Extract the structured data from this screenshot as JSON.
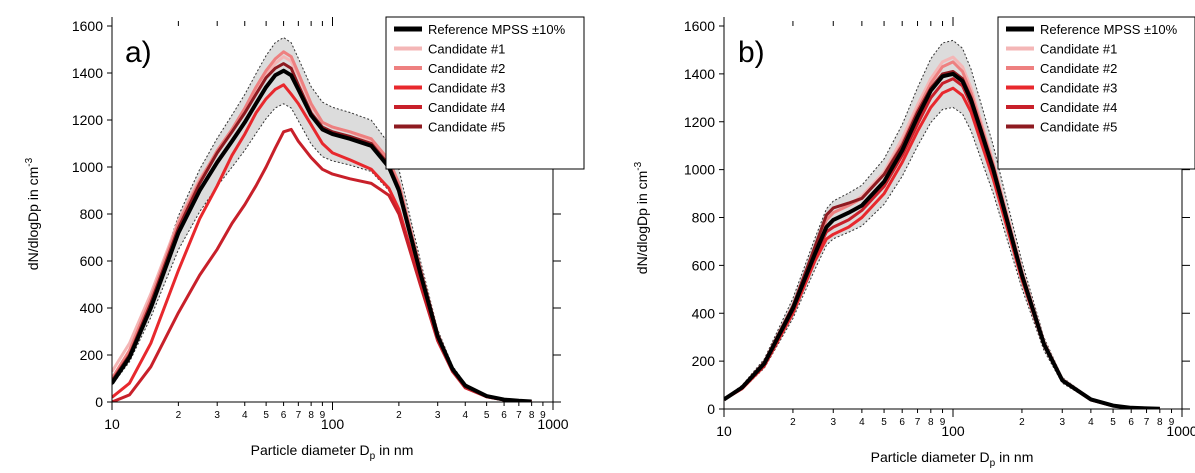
{
  "chart_data": [
    {
      "type": "line",
      "panel_label": "a)",
      "xlabel_main": "Particle diameter D",
      "xlabel_sub": "p",
      "xlabel_tail": " in nm",
      "ylabel_main": "dN/dlogDp in cm",
      "ylabel_sup": "-3",
      "x_scale": "log",
      "xlim": [
        10,
        1000
      ],
      "ylim": [
        0,
        1600
      ],
      "y_ticks": [
        0,
        200,
        400,
        600,
        800,
        1000,
        1200,
        1400,
        1600
      ],
      "x_major_ticks": [
        10,
        100,
        1000
      ],
      "x_major_labels": [
        "10",
        "100",
        "1000"
      ],
      "x_minor_ticks": [
        20,
        30,
        40,
        50,
        60,
        70,
        80,
        90,
        200,
        300,
        400,
        500,
        600,
        700,
        800,
        900
      ],
      "x_minor_labels": [
        "2",
        "3",
        "4",
        "5",
        "6",
        "7",
        "8",
        "9",
        "2",
        "3",
        "4",
        "5",
        "6",
        "7",
        "8",
        "9"
      ],
      "legend_position": "top-right",
      "band_label": "±10%",
      "x": [
        10,
        12,
        15,
        20,
        25,
        30,
        35,
        40,
        45,
        50,
        55,
        60,
        65,
        70,
        80,
        90,
        100,
        120,
        150,
        180,
        200,
        250,
        300,
        350,
        400,
        500,
        600,
        700,
        800
      ],
      "series": [
        {
          "name": "Reference MPSS ±10%",
          "color": "#000000",
          "width": 4,
          "values": [
            80,
            190,
            400,
            720,
            900,
            1020,
            1110,
            1190,
            1270,
            1340,
            1390,
            1410,
            1390,
            1330,
            1220,
            1160,
            1140,
            1120,
            1090,
            1000,
            900,
            550,
            280,
            140,
            70,
            25,
            10,
            5,
            2
          ]
        },
        {
          "name": "Candidate #1",
          "color": "#f4b6b6",
          "width": 3,
          "values": [
            130,
            250,
            460,
            770,
            950,
            1060,
            1150,
            1240,
            1320,
            1390,
            1440,
            1470,
            1450,
            1390,
            1260,
            1190,
            1170,
            1150,
            1110,
            1020,
            920,
            560,
            290,
            140,
            70,
            25,
            10,
            5,
            2
          ]
        },
        {
          "name": "Candidate #2",
          "color": "#ee8080",
          "width": 3,
          "values": [
            100,
            220,
            440,
            760,
            940,
            1070,
            1160,
            1250,
            1340,
            1410,
            1460,
            1490,
            1470,
            1400,
            1270,
            1190,
            1170,
            1150,
            1120,
            1030,
            930,
            570,
            290,
            140,
            70,
            25,
            10,
            5,
            2
          ]
        },
        {
          "name": "Candidate #3",
          "color": "#e8282d",
          "width": 3,
          "values": [
            20,
            80,
            250,
            560,
            780,
            920,
            1050,
            1140,
            1230,
            1290,
            1330,
            1350,
            1310,
            1270,
            1180,
            1100,
            1060,
            1030,
            990,
            910,
            820,
            510,
            270,
            130,
            65,
            22,
            9,
            4,
            2
          ]
        },
        {
          "name": "Candidate #4",
          "color": "#c8202a",
          "width": 3,
          "values": [
            0,
            30,
            150,
            380,
            540,
            650,
            760,
            840,
            920,
            1000,
            1080,
            1150,
            1160,
            1110,
            1040,
            990,
            970,
            950,
            930,
            880,
            800,
            500,
            260,
            130,
            60,
            22,
            9,
            4,
            2
          ]
        },
        {
          "name": "Candidate #5",
          "color": "#8e1a20",
          "width": 3,
          "values": [
            90,
            200,
            420,
            740,
            930,
            1060,
            1150,
            1230,
            1310,
            1380,
            1420,
            1440,
            1420,
            1350,
            1230,
            1170,
            1150,
            1130,
            1100,
            1010,
            910,
            560,
            285,
            140,
            70,
            25,
            10,
            5,
            2
          ]
        }
      ]
    },
    {
      "type": "line",
      "panel_label": "b)",
      "xlabel_main": "Particle diameter D",
      "xlabel_sub": "p",
      "xlabel_tail": " in nm",
      "ylabel_main": "dN/dlogDp in cm",
      "ylabel_sup": "-3",
      "x_scale": "log",
      "xlim": [
        10,
        1000
      ],
      "ylim": [
        0,
        1600
      ],
      "y_ticks": [
        0,
        200,
        400,
        600,
        800,
        1000,
        1200,
        1400,
        1600
      ],
      "x_major_ticks": [
        10,
        100,
        1000
      ],
      "x_major_labels": [
        "10",
        "100",
        "1000"
      ],
      "x_minor_ticks": [
        20,
        30,
        40,
        50,
        60,
        70,
        80,
        90,
        200,
        300,
        400,
        500,
        600,
        700,
        800,
        900
      ],
      "x_minor_labels": [
        "2",
        "3",
        "4",
        "5",
        "6",
        "7",
        "8",
        "9",
        "2",
        "3",
        "4",
        "5",
        "6",
        "7",
        "8",
        "9"
      ],
      "legend_position": "top-right",
      "band_label": "±10%",
      "x": [
        10,
        12,
        15,
        20,
        25,
        28,
        30,
        35,
        40,
        50,
        60,
        70,
        80,
        90,
        100,
        110,
        120,
        150,
        200,
        250,
        300,
        400,
        500,
        600,
        800
      ],
      "series": [
        {
          "name": "Reference MPSS ±10%",
          "color": "#000000",
          "width": 4,
          "values": [
            40,
            90,
            190,
            420,
            650,
            760,
            790,
            820,
            850,
            950,
            1080,
            1220,
            1330,
            1390,
            1400,
            1370,
            1290,
            1000,
            560,
            270,
            120,
            40,
            14,
            5,
            1
          ]
        },
        {
          "name": "Candidate #1",
          "color": "#f4b6b6",
          "width": 3,
          "values": [
            40,
            90,
            195,
            430,
            670,
            790,
            820,
            850,
            890,
            990,
            1130,
            1270,
            1380,
            1450,
            1470,
            1430,
            1340,
            1030,
            580,
            280,
            125,
            40,
            14,
            5,
            1
          ]
        },
        {
          "name": "Candidate #2",
          "color": "#ee8080",
          "width": 3,
          "values": [
            40,
            90,
            195,
            430,
            670,
            790,
            820,
            850,
            880,
            980,
            1110,
            1250,
            1360,
            1430,
            1450,
            1410,
            1320,
            1020,
            570,
            275,
            122,
            40,
            14,
            5,
            1
          ]
        },
        {
          "name": "Candidate #3",
          "color": "#e8282d",
          "width": 3,
          "values": [
            40,
            85,
            180,
            400,
            620,
            710,
            730,
            760,
            800,
            900,
            1030,
            1160,
            1260,
            1320,
            1340,
            1310,
            1240,
            960,
            540,
            265,
            118,
            38,
            13,
            5,
            1
          ]
        },
        {
          "name": "Candidate #4",
          "color": "#c8202a",
          "width": 3,
          "values": [
            40,
            88,
            185,
            410,
            640,
            740,
            760,
            790,
            830,
            930,
            1060,
            1190,
            1300,
            1360,
            1380,
            1350,
            1270,
            985,
            555,
            270,
            120,
            39,
            14,
            5,
            1
          ]
        },
        {
          "name": "Candidate #5",
          "color": "#8e1a20",
          "width": 3,
          "values": [
            40,
            92,
            195,
            430,
            680,
            810,
            840,
            860,
            880,
            980,
            1100,
            1240,
            1340,
            1400,
            1410,
            1380,
            1300,
            1010,
            565,
            275,
            122,
            40,
            14,
            5,
            1
          ]
        }
      ]
    }
  ]
}
